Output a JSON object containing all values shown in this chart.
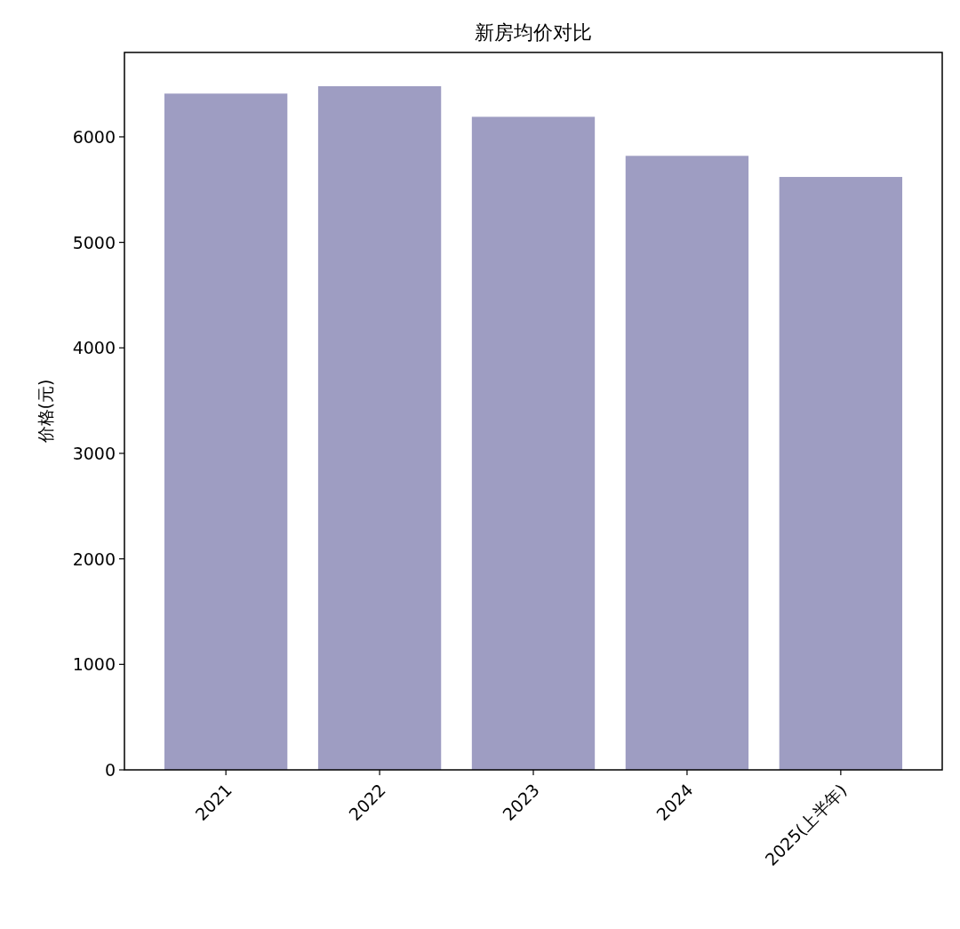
{
  "chart_data": {
    "type": "bar",
    "title": "新房均价对比",
    "ylabel": "价格(元)",
    "categories": [
      "2021",
      "2022",
      "2023",
      "2024",
      "2025(上半年)"
    ],
    "values": [
      6410,
      6480,
      6190,
      5820,
      5620
    ],
    "color": "#9e9dc2",
    "ylim": [
      0,
      6800
    ],
    "yticks": [
      0,
      1000,
      2000,
      3000,
      4000,
      5000,
      6000
    ],
    "grid": false
  }
}
